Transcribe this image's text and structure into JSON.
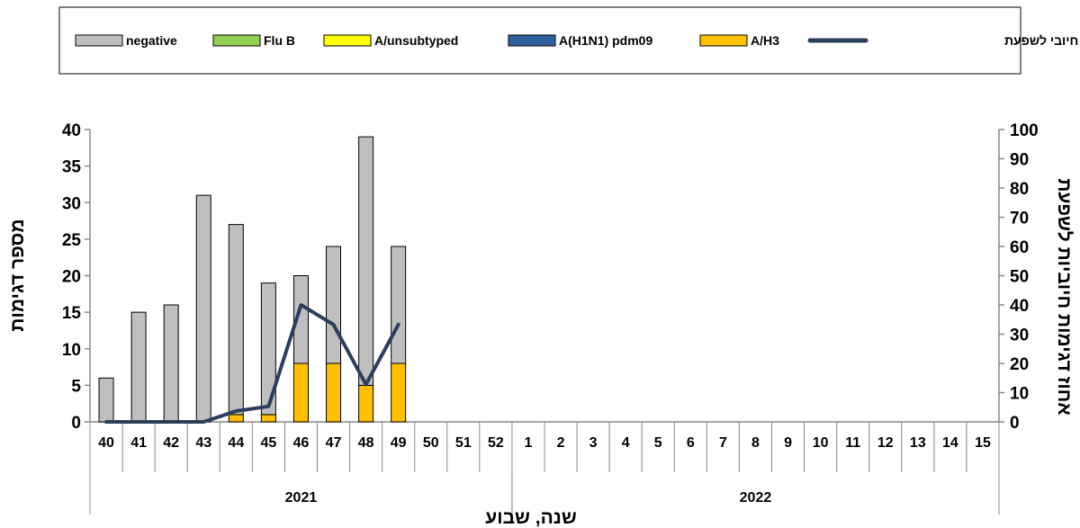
{
  "chart_data": {
    "type": "bar",
    "stacked": true,
    "grid": false,
    "legend_position": "top",
    "xlabel": "שנה, שבוע",
    "ylabel_left": "מספר דגימות",
    "ylabel_right": "אחוז דגימות חיוביות לשפעת",
    "ylim_left": [
      0,
      40
    ],
    "ylim_right": [
      0,
      100
    ],
    "yticks_left": [
      "0",
      "5",
      "10",
      "15",
      "20",
      "25",
      "30",
      "35",
      "40"
    ],
    "yticks_right": [
      "0",
      "10",
      "20",
      "30",
      "40",
      "50",
      "60",
      "70",
      "80",
      "90",
      "100"
    ],
    "categories": [
      "40",
      "41",
      "42",
      "43",
      "44",
      "45",
      "46",
      "47",
      "48",
      "49",
      "50",
      "51",
      "52",
      "1",
      "2",
      "3",
      "4",
      "5",
      "6",
      "7",
      "8",
      "9",
      "10",
      "11",
      "12",
      "13",
      "14",
      "15"
    ],
    "year_groups": [
      {
        "label": "2021",
        "start": 0,
        "count": 13
      },
      {
        "label": "2022",
        "start": 13,
        "count": 15
      }
    ],
    "legend": [
      {
        "name": "negative",
        "color": "#bfbfbf",
        "kind": "bar"
      },
      {
        "name": "Flu B",
        "color": "#92d050",
        "kind": "bar"
      },
      {
        "name": "A/unsubtyped",
        "color": "#ffff00",
        "kind": "bar"
      },
      {
        "name": "A(H1N1) pdm09",
        "color": "#2e5f9e",
        "kind": "bar"
      },
      {
        "name": "A/H3",
        "color": "#ffc000",
        "kind": "bar"
      },
      {
        "name": "אחוז חיובי לשפעת",
        "color": "#2b3f5c",
        "kind": "line"
      }
    ],
    "series": [
      {
        "name": "A/H3",
        "color": "#ffc000",
        "values": [
          0,
          0,
          0,
          0,
          1,
          1,
          8,
          8,
          5,
          8,
          null,
          null,
          null,
          null,
          null,
          null,
          null,
          null,
          null,
          null,
          null,
          null,
          null,
          null,
          null,
          null,
          null,
          null
        ]
      },
      {
        "name": "A(H1N1) pdm09",
        "color": "#2e5f9e",
        "values": [
          0,
          0,
          0,
          0,
          0,
          0,
          0,
          0,
          0,
          0,
          null,
          null,
          null,
          null,
          null,
          null,
          null,
          null,
          null,
          null,
          null,
          null,
          null,
          null,
          null,
          null,
          null,
          null
        ]
      },
      {
        "name": "A/unsubtyped",
        "color": "#ffff00",
        "values": [
          0,
          0,
          0,
          0,
          0,
          0,
          0,
          0,
          0,
          0,
          null,
          null,
          null,
          null,
          null,
          null,
          null,
          null,
          null,
          null,
          null,
          null,
          null,
          null,
          null,
          null,
          null,
          null
        ]
      },
      {
        "name": "Flu B",
        "color": "#92d050",
        "values": [
          0,
          0,
          0,
          0,
          0,
          0,
          0,
          0,
          0,
          0,
          null,
          null,
          null,
          null,
          null,
          null,
          null,
          null,
          null,
          null,
          null,
          null,
          null,
          null,
          null,
          null,
          null,
          null
        ]
      },
      {
        "name": "negative",
        "color": "#bfbfbf",
        "values": [
          6,
          15,
          16,
          31,
          26,
          18,
          12,
          16,
          34,
          16,
          null,
          null,
          null,
          null,
          null,
          null,
          null,
          null,
          null,
          null,
          null,
          null,
          null,
          null,
          null,
          null,
          null,
          null
        ]
      }
    ],
    "line_series": {
      "name": "אחוז חיובי לשפעת",
      "color": "#2b3f5c",
      "axis": "right",
      "values": [
        0,
        0,
        0,
        0,
        3.7,
        5.3,
        40,
        33.3,
        12.8,
        33.3,
        null,
        null,
        null,
        null,
        null,
        null,
        null,
        null,
        null,
        null,
        null,
        null,
        null,
        null,
        null,
        null,
        null,
        null
      ]
    }
  }
}
